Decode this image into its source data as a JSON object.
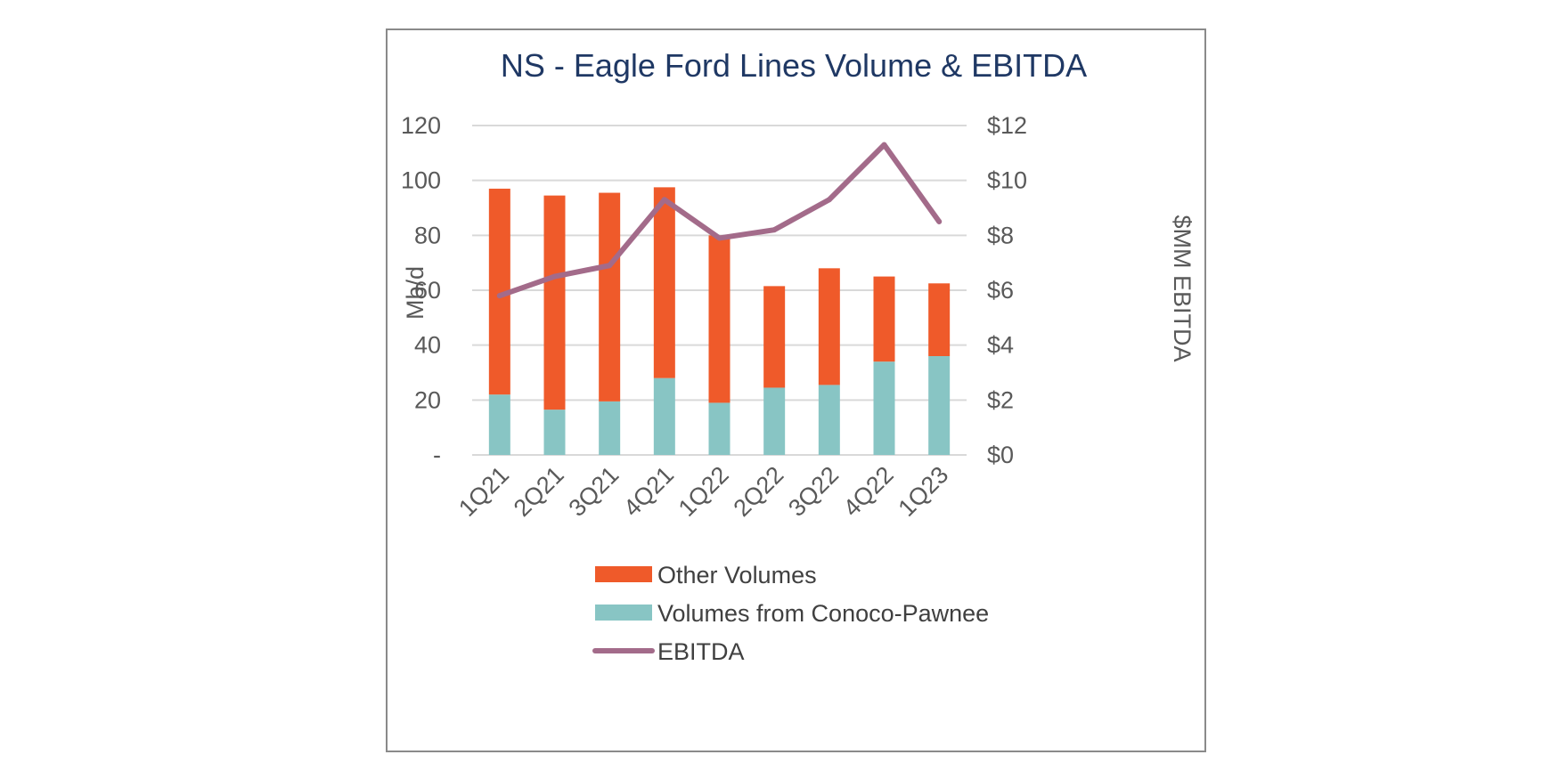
{
  "chart_data": {
    "type": "bar",
    "title": "NS - Eagle Ford Lines Volume & EBITDA",
    "categories": [
      "1Q21",
      "2Q21",
      "3Q21",
      "4Q21",
      "1Q22",
      "2Q22",
      "3Q22",
      "4Q22",
      "1Q23"
    ],
    "ylabel": "Mb/d",
    "ylabel_right": "$MM EBITDA",
    "ylim": [
      0,
      120
    ],
    "ylim_right": [
      0,
      12
    ],
    "y_ticks": [
      "-",
      "20",
      "40",
      "60",
      "80",
      "100",
      "120"
    ],
    "y_ticks_right": [
      "$0",
      "$2",
      "$4",
      "$6",
      "$8",
      "$10",
      "$12"
    ],
    "grid": true,
    "legend_position": "bottom",
    "stacked": true,
    "series": [
      {
        "name": "Volumes from Conoco-Pawnee",
        "kind": "bar",
        "axis": "left",
        "color": "#88c5c4",
        "values": [
          22,
          16.5,
          19.5,
          28,
          19,
          24.5,
          25.5,
          34,
          36
        ]
      },
      {
        "name": "Other Volumes",
        "kind": "bar",
        "axis": "left",
        "color": "#ef5a2a",
        "values": [
          75,
          78,
          76,
          69.5,
          61,
          37,
          42.5,
          31,
          26.5
        ]
      },
      {
        "name": "EBITDA",
        "kind": "line",
        "axis": "right",
        "color": "#a36b8a",
        "values": [
          5.8,
          6.5,
          6.9,
          9.3,
          7.9,
          8.2,
          9.3,
          11.3,
          8.5
        ]
      }
    ],
    "legend_order": [
      "Other Volumes",
      "Volumes from Conoco-Pawnee",
      "EBITDA"
    ]
  }
}
